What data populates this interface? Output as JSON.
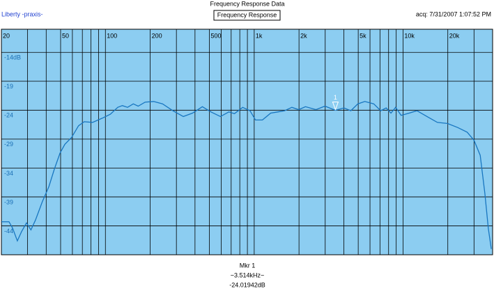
{
  "header": {
    "title": "Frequency Response Data",
    "left": "Liberty -praxis-",
    "right": "acq: 7/31/2007 1:07:52 PM",
    "boxed": "Frequency Response"
  },
  "footer": {
    "line1": "Mkr 1",
    "line2": "~3.514kHz~",
    "line3": "-24.01942dB"
  },
  "chart_data": {
    "type": "line",
    "log_x": true,
    "grid": true,
    "xlim": [
      20,
      40000
    ],
    "ylim": [
      -49,
      -10
    ],
    "xticks": [
      20,
      50,
      100,
      200,
      500,
      {
        "value": 1000,
        "label": "1k"
      },
      {
        "value": 2000,
        "label": "2k"
      },
      {
        "value": 5000,
        "label": "5k"
      },
      {
        "value": 10000,
        "label": "10k"
      },
      {
        "value": 20000,
        "label": "20k"
      }
    ],
    "xgrid_minor": [
      30,
      40,
      60,
      70,
      80,
      90,
      300,
      400,
      600,
      700,
      800,
      900,
      3000,
      4000,
      6000,
      7000,
      8000,
      9000,
      30000
    ],
    "yticks": [
      {
        "value": -14,
        "label": "-14dB"
      },
      -19,
      -24,
      -29,
      -34,
      -39,
      -44
    ],
    "background": "#8ccdf1",
    "tick_color": "#1a6fb5",
    "series": [
      {
        "color": "#1876c0",
        "x": [
          20,
          22.5,
          23.8,
          25.6,
          27.3,
          29.5,
          31.6,
          33.9,
          37.7,
          41.7,
          45.4,
          49.6,
          53.4,
          59.3,
          66,
          72,
          82,
          95,
          108,
          121,
          130,
          141,
          154,
          166,
          185,
          211,
          242,
          284,
          334,
          385,
          448,
          512,
          593,
          675,
          737,
          837,
          937,
          1020,
          1135,
          1290,
          1440,
          1600,
          1790,
          1990,
          2210,
          2600,
          2990,
          3514,
          4010,
          4460,
          4970,
          5540,
          6360,
          7080,
          7700,
          8300,
          8920,
          9710,
          11000,
          12400,
          14500,
          17000,
          19900,
          23300,
          27000,
          30000,
          33000,
          35500,
          37400,
          39200
        ],
        "values": [
          -43.3,
          -43.3,
          -44.4,
          -46.6,
          -45,
          -43.5,
          -44.7,
          -43,
          -39.8,
          -37.2,
          -34.2,
          -31.4,
          -29.9,
          -28.7,
          -26.7,
          -26,
          -26.1,
          -25.4,
          -24.7,
          -23.5,
          -23.2,
          -23.5,
          -22.9,
          -23.3,
          -22.6,
          -22.5,
          -22.9,
          -24.1,
          -25.1,
          -24.5,
          -23.4,
          -24.3,
          -25.1,
          -24.3,
          -24.6,
          -23.5,
          -24.1,
          -25.7,
          -25.7,
          -24.5,
          -24.3,
          -24.1,
          -23.5,
          -23.9,
          -23.4,
          -23.9,
          -23.3,
          -24.02,
          -23.6,
          -24.1,
          -22.9,
          -22.5,
          -22.9,
          -24.1,
          -23.6,
          -24.5,
          -23.5,
          -24.9,
          -24.5,
          -24.1,
          -25.1,
          -26.1,
          -26.3,
          -27,
          -27.8,
          -29.2,
          -31.8,
          -38.4,
          -44.4,
          -48
        ]
      }
    ],
    "marker": {
      "label": "1",
      "x": 3514,
      "y": -24.01942
    }
  }
}
